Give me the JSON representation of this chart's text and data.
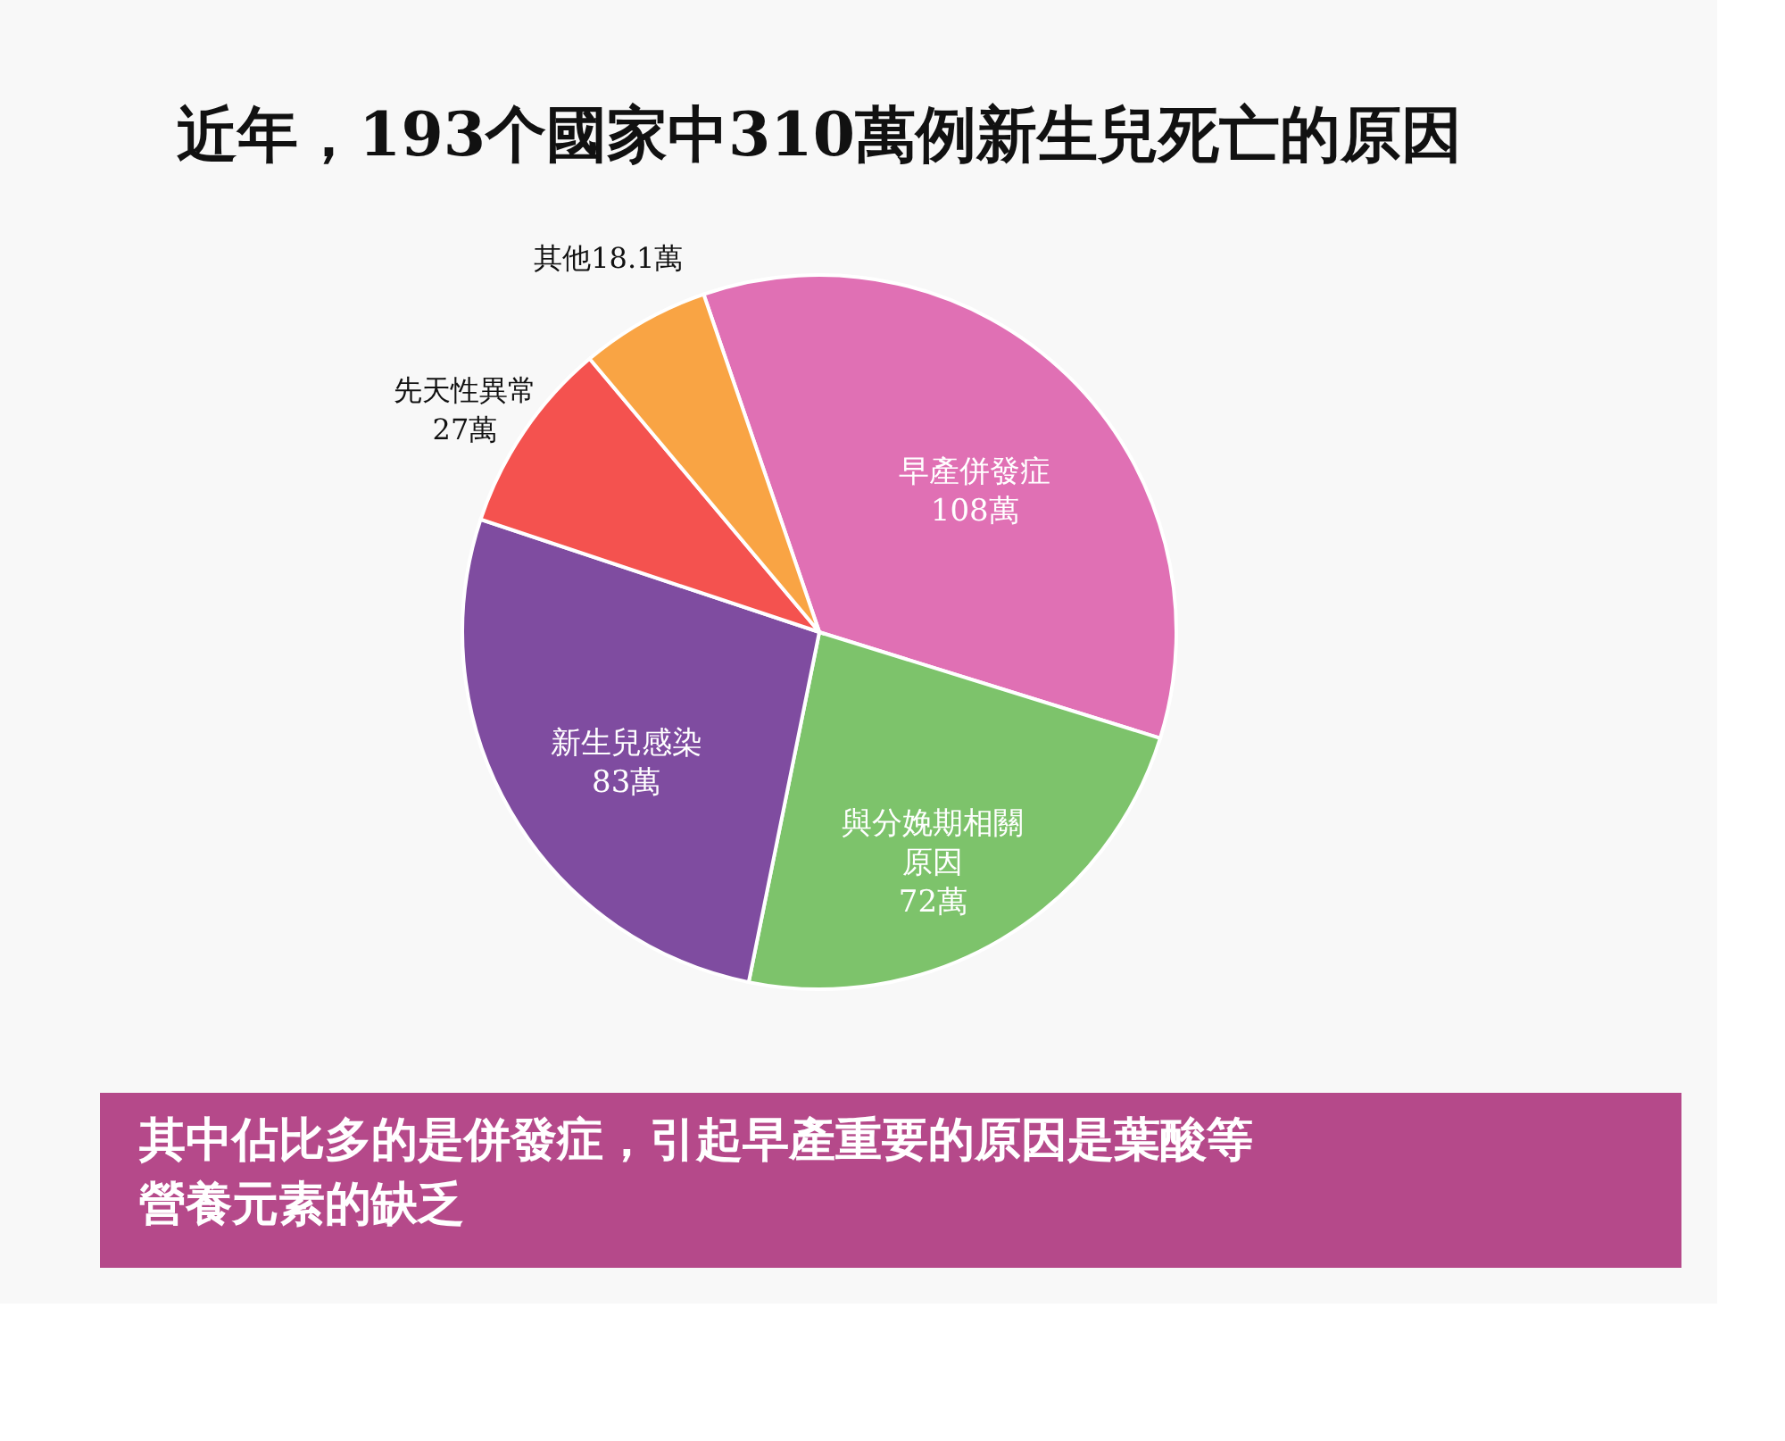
{
  "chart_data": {
    "type": "pie",
    "title": "近年，193个國家中310萬例新生兒死亡的原因",
    "categories": [
      "早產併發症",
      "與分娩期相關原因",
      "新生兒感染",
      "先天性異常",
      "其他"
    ],
    "values": [
      108,
      72,
      83,
      27,
      18.1
    ],
    "value_labels": [
      "108萬",
      "72萬",
      "83萬",
      "27萬",
      "18.1萬"
    ],
    "colors": [
      "#e070b4",
      "#7dc36b",
      "#7f4ca0",
      "#f4524f",
      "#f9a444"
    ],
    "legend": false,
    "annotations": [
      "其中佔比多的是併發症，引起早產重要的原因是葉酸等營養元素的缺乏"
    ]
  }
}
